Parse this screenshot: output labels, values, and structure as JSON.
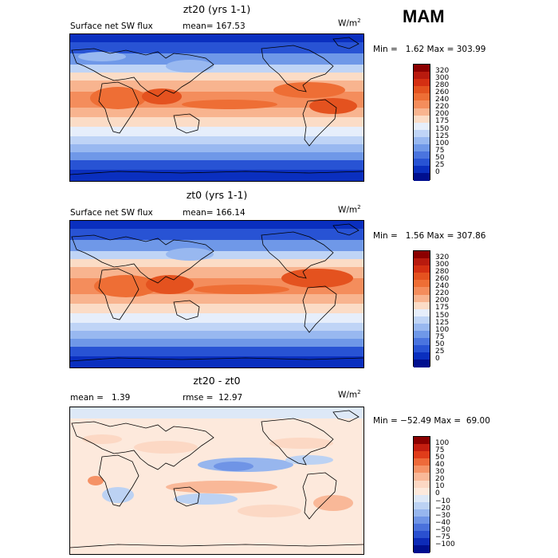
{
  "season": "MAM",
  "units": {
    "base": "W/m",
    "exp": "2"
  },
  "panels": [
    {
      "title": "zt20 (yrs 1-1)",
      "field": "Surface net SW flux",
      "mean_label": "mean=",
      "mean": "167.53",
      "min_label": "Min =",
      "min": "1.62",
      "max_label": "Max =",
      "max": "303.99",
      "colorbar": {
        "levels": [
          "320",
          "300",
          "280",
          "260",
          "240",
          "220",
          "200",
          "175",
          "150",
          "125",
          "100",
          "75",
          "50",
          "25",
          "0"
        ],
        "colors": [
          "#8b0000",
          "#b81a0e",
          "#d42f12",
          "#e4521f",
          "#ee6e35",
          "#f48d5c",
          "#f8b48f",
          "#fbdcc6",
          "#e6eefb",
          "#bfd4f6",
          "#98b8f0",
          "#6f98e8",
          "#4a74df",
          "#2853d4",
          "#0a2fbf",
          "#000f8f"
        ]
      }
    },
    {
      "title": "zt0 (yrs 1-1)",
      "field": "Surface net SW flux",
      "mean_label": "mean=",
      "mean": "166.14",
      "min_label": "Min =",
      "min": "1.56",
      "max_label": "Max =",
      "max": "307.86",
      "colorbar": {
        "levels": [
          "320",
          "300",
          "280",
          "260",
          "240",
          "220",
          "200",
          "175",
          "150",
          "125",
          "100",
          "75",
          "50",
          "25",
          "0"
        ],
        "colors": [
          "#8b0000",
          "#b81a0e",
          "#d42f12",
          "#e4521f",
          "#ee6e35",
          "#f48d5c",
          "#f8b48f",
          "#fbdcc6",
          "#e6eefb",
          "#bfd4f6",
          "#98b8f0",
          "#6f98e8",
          "#4a74df",
          "#2853d4",
          "#0a2fbf",
          "#000f8f"
        ]
      }
    },
    {
      "title": "zt20 - zt0",
      "mean_label": "mean =",
      "mean": "1.39",
      "rmse_label": "rmse =",
      "rmse": "12.97",
      "min_label": "Min =",
      "min": "−52.49",
      "max_label": "Max =",
      "max": "69.00",
      "colorbar": {
        "levels": [
          "100",
          "75",
          "50",
          "40",
          "30",
          "20",
          "10",
          "0",
          "−10",
          "−20",
          "−30",
          "−40",
          "−50",
          "−75",
          "−100"
        ],
        "colors": [
          "#8b0000",
          "#c41e10",
          "#e03c1a",
          "#ee6a3a",
          "#f59266",
          "#f9b898",
          "#fcd8c4",
          "#fde9dc",
          "#dde8f7",
          "#bcd2f3",
          "#97b6ee",
          "#6f94e6",
          "#4a71dc",
          "#2a50d0",
          "#0d2bb8",
          "#000f8f"
        ]
      }
    }
  ]
}
